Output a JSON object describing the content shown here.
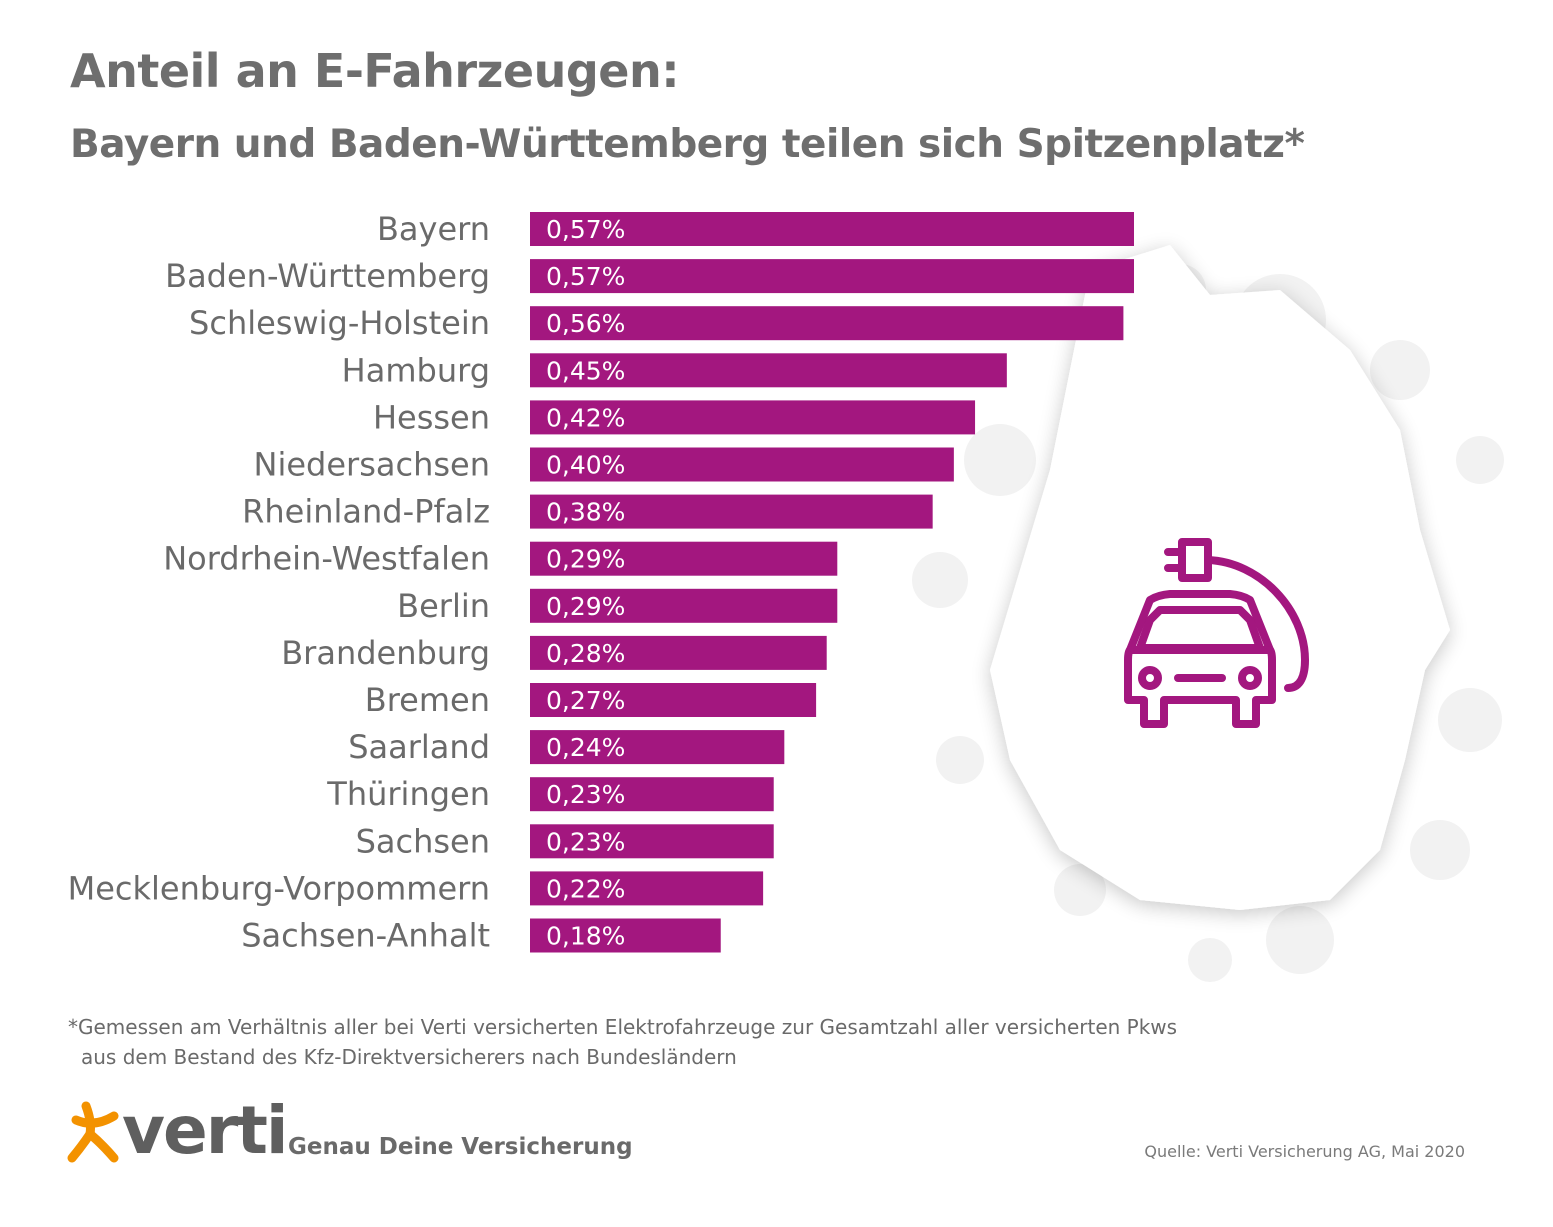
{
  "title": "Anteil an E-Fahrzeugen:",
  "subtitle": "Bayern und Baden-Württemberg teilen sich Spitzenplatz*",
  "chart_data": {
    "type": "bar",
    "orientation": "horizontal",
    "categories": [
      "Bayern",
      "Baden-Württemberg",
      "Schleswig-Holstein",
      "Hamburg",
      "Hessen",
      "Niedersachsen",
      "Rheinland-Pfalz",
      "Nordrhein-Westfalen",
      "Berlin",
      "Brandenburg",
      "Bremen",
      "Saarland",
      "Thüringen",
      "Sachsen",
      "Mecklenburg-Vorpommern",
      "Sachsen-Anhalt"
    ],
    "values": [
      0.57,
      0.57,
      0.56,
      0.45,
      0.42,
      0.4,
      0.38,
      0.29,
      0.29,
      0.28,
      0.27,
      0.24,
      0.23,
      0.23,
      0.22,
      0.18
    ],
    "value_labels": [
      "0,57%",
      "0,57%",
      "0,56%",
      "0,45%",
      "0,42%",
      "0,40%",
      "0,38%",
      "0,29%",
      "0,29%",
      "0,28%",
      "0,27%",
      "0,24%",
      "0,23%",
      "0,23%",
      "0,22%",
      "0,18%"
    ],
    "unit": "%",
    "xlim": [
      0,
      0.57
    ],
    "bar_color": "#a3177f",
    "grid": false,
    "legend": "none"
  },
  "footnote": {
    "line1": "*Gemessen am Verhältnis aller bei Verti versicherten Elektrofahrzeuge zur Gesamtzahl aller versicherten Pkws",
    "line2": "aus dem Bestand des Kfz-Direktversicherers nach Bundesländern"
  },
  "logo": {
    "brand": "verti",
    "tagline": "Genau Deine Versicherung",
    "star_color": "#f39200"
  },
  "source": "Quelle: Verti Versicherung AG, Mai 2020",
  "icons": [
    "germany-map-icon",
    "electric-car-icon",
    "verti-star-icon"
  ],
  "colors": {
    "text": "#6e6e6e",
    "accent": "#a3177f"
  }
}
